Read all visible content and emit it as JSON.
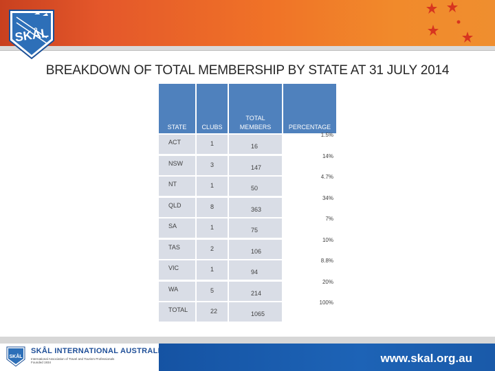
{
  "header": {
    "logo_text": "SKÅL",
    "brand_colors": {
      "banner": "#f07327",
      "table_header": "#4f81bd",
      "footer": "#1d63b6"
    }
  },
  "title": "BREAKDOWN OF TOTAL MEMBERSHIP BY STATE AT 31 JULY 2014",
  "table": {
    "headers": {
      "state": "STATE",
      "clubs": "CLUBS",
      "total_line1": "TOTAL",
      "total_line2": "MEMBERS",
      "percentage": "PERCENTAGE"
    },
    "rows": [
      {
        "state": "ACT",
        "clubs": "1",
        "members": "16",
        "percentage": "1.5%"
      },
      {
        "state": "NSW",
        "clubs": "3",
        "members": "147",
        "percentage": "14%"
      },
      {
        "state": "NT",
        "clubs": "1",
        "members": "50",
        "percentage": "4.7%"
      },
      {
        "state": "QLD",
        "clubs": "8",
        "members": "363",
        "percentage": "34%"
      },
      {
        "state": "SA",
        "clubs": "1",
        "members": "75",
        "percentage": "7%"
      },
      {
        "state": "TAS",
        "clubs": "2",
        "members": "106",
        "percentage": "10%"
      },
      {
        "state": "VIC",
        "clubs": "1",
        "members": "94",
        "percentage": "8.8%"
      },
      {
        "state": "WA",
        "clubs": "5",
        "members": "214",
        "percentage": "20%"
      },
      {
        "state": "TOTAL",
        "clubs": "22",
        "members": "1065",
        "percentage": "100%"
      }
    ]
  },
  "footer": {
    "name": "SKÅL INTERNATIONAL AUSTRALIA",
    "sub1": "International Association of Travel and Tourism Professionals",
    "sub2": "Founded 1934",
    "url": "www.skal.org.au"
  }
}
